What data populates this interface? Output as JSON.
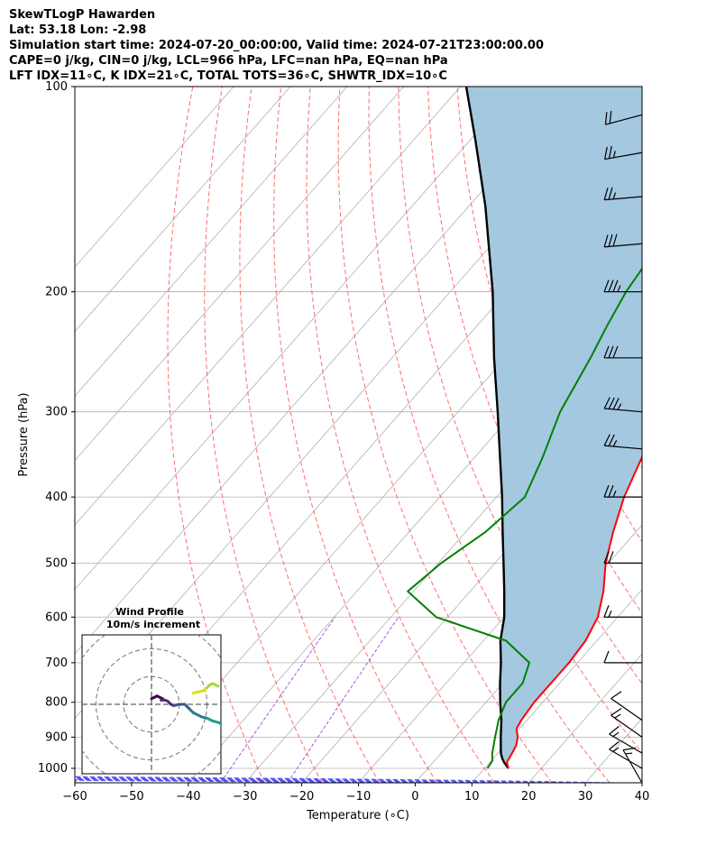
{
  "header": {
    "line1": "SkewTLogP Hawarden",
    "line2": "Lat: 53.18   Lon: -2.98",
    "line3": "Simulation start time: 2024-07-20_00:00:00, Valid time: 2024-07-21T23:00:00.00",
    "line4": "CAPE=0 j/kg, CIN=0 j/kg, LCL=966 hPa, LFC=nan hPa, EQ=nan hPa",
    "line5": "LFT IDX=11∘C, K IDX=21∘C, TOTAL TOTS=36∘C, SHWTR_IDX=10∘C"
  },
  "chart_data": {
    "type": "line",
    "xlabel": "Temperature (∘C)",
    "ylabel": "Pressure (hPa)",
    "xlim": [
      -60,
      40
    ],
    "ylim": [
      1050,
      100
    ],
    "y_scale": "log",
    "x_ticks": [
      "−60",
      "−50",
      "−40",
      "−30",
      "−20",
      "−10",
      "0",
      "10",
      "20",
      "30",
      "40"
    ],
    "y_ticks": [
      "100",
      "200",
      "300",
      "400",
      "500",
      "600",
      "700",
      "800",
      "900",
      "1000"
    ],
    "grid": true,
    "colors": {
      "temperature": "#ff0000",
      "dewpoint": "#008000",
      "parcel": "#000000",
      "cape_fill": "#a3c8e0",
      "isotherm": "#b0b0b0",
      "dry_adiabat": "#ff5555",
      "moist_adiabat": "#4b4bff",
      "mixing_ratio": "#9933cc"
    },
    "series": [
      {
        "key": "temperature",
        "points": [
          [
            1000,
            14.2
          ],
          [
            980,
            13.0
          ],
          [
            950,
            12.5
          ],
          [
            925,
            12.0
          ],
          [
            900,
            11.0
          ],
          [
            875,
            9.5
          ],
          [
            850,
            9.0
          ],
          [
            800,
            8.5
          ],
          [
            750,
            8.5
          ],
          [
            700,
            8.5
          ],
          [
            650,
            8.0
          ],
          [
            600,
            6.5
          ],
          [
            550,
            3.5
          ],
          [
            500,
            -0.5
          ],
          [
            450,
            -4.0
          ],
          [
            400,
            -7.5
          ],
          [
            350,
            -10.5
          ],
          [
            300,
            -13.0
          ],
          [
            250,
            -15.5
          ],
          [
            225,
            -15.0
          ],
          [
            200,
            -15.5
          ],
          [
            175,
            -18.0
          ],
          [
            150,
            -21.0
          ],
          [
            125,
            -25.5
          ],
          [
            110,
            -28.5
          ],
          [
            100,
            -30.0
          ]
        ]
      },
      {
        "key": "dewpoint",
        "points": [
          [
            1000,
            10.5
          ],
          [
            975,
            10.2
          ],
          [
            950,
            9.0
          ],
          [
            900,
            7.0
          ],
          [
            850,
            5.0
          ],
          [
            800,
            3.5
          ],
          [
            750,
            3.5
          ],
          [
            700,
            1.5
          ],
          [
            650,
            -6.0
          ],
          [
            600,
            -22.0
          ],
          [
            550,
            -31.0
          ],
          [
            500,
            -29.5
          ],
          [
            450,
            -26.5
          ],
          [
            400,
            -25.0
          ],
          [
            350,
            -28.0
          ],
          [
            300,
            -32.0
          ],
          [
            250,
            -35.0
          ],
          [
            225,
            -37.0
          ],
          [
            200,
            -39.0
          ],
          [
            180,
            -40.0
          ],
          [
            165,
            -43.0
          ],
          [
            150,
            -40.5
          ],
          [
            125,
            -35.5
          ],
          [
            110,
            -31.5
          ],
          [
            100,
            -29.0
          ]
        ]
      },
      {
        "key": "parcel",
        "points": [
          [
            1000,
            14.2
          ],
          [
            980,
            12.5
          ],
          [
            966,
            11.5
          ],
          [
            950,
            10.5
          ],
          [
            900,
            8.0
          ],
          [
            850,
            5.5
          ],
          [
            800,
            2.5
          ],
          [
            750,
            -0.5
          ],
          [
            700,
            -3.5
          ],
          [
            650,
            -7.0
          ],
          [
            600,
            -10.0
          ],
          [
            550,
            -14.0
          ],
          [
            500,
            -18.5
          ],
          [
            450,
            -23.5
          ],
          [
            400,
            -29.0
          ],
          [
            350,
            -35.5
          ],
          [
            300,
            -43.0
          ],
          [
            250,
            -52.0
          ],
          [
            200,
            -62.5
          ],
          [
            150,
            -77.0
          ],
          [
            120,
            -89.0
          ],
          [
            100,
            -99.0
          ]
        ]
      }
    ],
    "wind_barbs": [
      {
        "p": 1050,
        "speed": 15,
        "dir": 330
      },
      {
        "p": 1000,
        "speed": 15,
        "dir": 300
      },
      {
        "p": 950,
        "speed": 15,
        "dir": 300
      },
      {
        "p": 900,
        "speed": 15,
        "dir": 305
      },
      {
        "p": 850,
        "speed": 10,
        "dir": 305
      },
      {
        "p": 700,
        "speed": 10,
        "dir": 270
      },
      {
        "p": 600,
        "speed": 15,
        "dir": 270
      },
      {
        "p": 500,
        "speed": 20,
        "dir": 270
      },
      {
        "p": 400,
        "speed": 25,
        "dir": 270
      },
      {
        "p": 340,
        "speed": 25,
        "dir": 275
      },
      {
        "p": 300,
        "speed": 35,
        "dir": 275
      },
      {
        "p": 250,
        "speed": 30,
        "dir": 270
      },
      {
        "p": 200,
        "speed": 35,
        "dir": 270
      },
      {
        "p": 170,
        "speed": 30,
        "dir": 265
      },
      {
        "p": 145,
        "speed": 25,
        "dir": 265
      },
      {
        "p": 125,
        "speed": 25,
        "dir": 260
      },
      {
        "p": 110,
        "speed": 20,
        "dir": 255
      }
    ],
    "hodograph": {
      "title": "Wind Profile",
      "subtitle": "10m/s increment",
      "rings_ms": [
        10,
        20,
        30
      ],
      "extent_ms": 25,
      "points": [
        [
          0,
          2
        ],
        [
          1,
          2.5
        ],
        [
          2,
          3
        ],
        [
          3,
          2.5
        ],
        [
          4,
          2
        ],
        [
          3.5,
          1.5
        ],
        [
          5,
          1.5
        ],
        [
          6,
          1
        ],
        [
          7,
          0
        ],
        [
          8,
          -0.5
        ],
        [
          10,
          0
        ],
        [
          12,
          0
        ],
        [
          13,
          -1
        ],
        [
          14,
          -2
        ],
        [
          15,
          -3
        ],
        [
          17,
          -4
        ],
        [
          18,
          -4.5
        ],
        [
          20,
          -5
        ],
        [
          22,
          -6
        ],
        [
          24,
          -6.5
        ],
        [
          25,
          -7
        ]
      ],
      "points_upper": [
        [
          15,
          4
        ],
        [
          17,
          4.5
        ],
        [
          19,
          5
        ],
        [
          20,
          6
        ],
        [
          21,
          7
        ],
        [
          22,
          7.5
        ],
        [
          23,
          7
        ],
        [
          24,
          6.5
        ]
      ]
    }
  }
}
